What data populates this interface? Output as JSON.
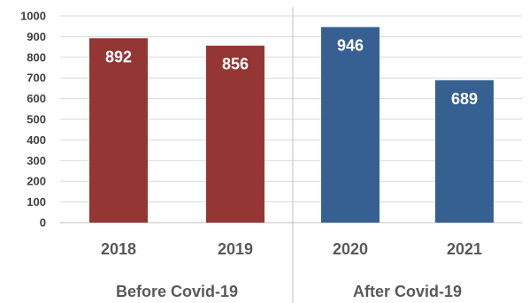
{
  "chart_data": {
    "type": "bar",
    "title": "",
    "xlabel": "",
    "ylabel": "",
    "ylim": [
      0,
      1000
    ],
    "ytick_step": 100,
    "grid": true,
    "categories": [
      "2018",
      "2019",
      "2020",
      "2021"
    ],
    "values": [
      892,
      856,
      946,
      689
    ],
    "data_labels": [
      "892",
      "856",
      "946",
      "689"
    ],
    "groups": [
      {
        "label": "Before Covid-19",
        "categories": [
          "2018",
          "2019"
        ],
        "color": "#943634"
      },
      {
        "label": "After Covid-19",
        "categories": [
          "2020",
          "2021"
        ],
        "color": "#376092"
      }
    ],
    "colors": {
      "grid": "#d9d9d9",
      "axis": "#bfbfbf",
      "separator": "#bfbfbf"
    }
  }
}
